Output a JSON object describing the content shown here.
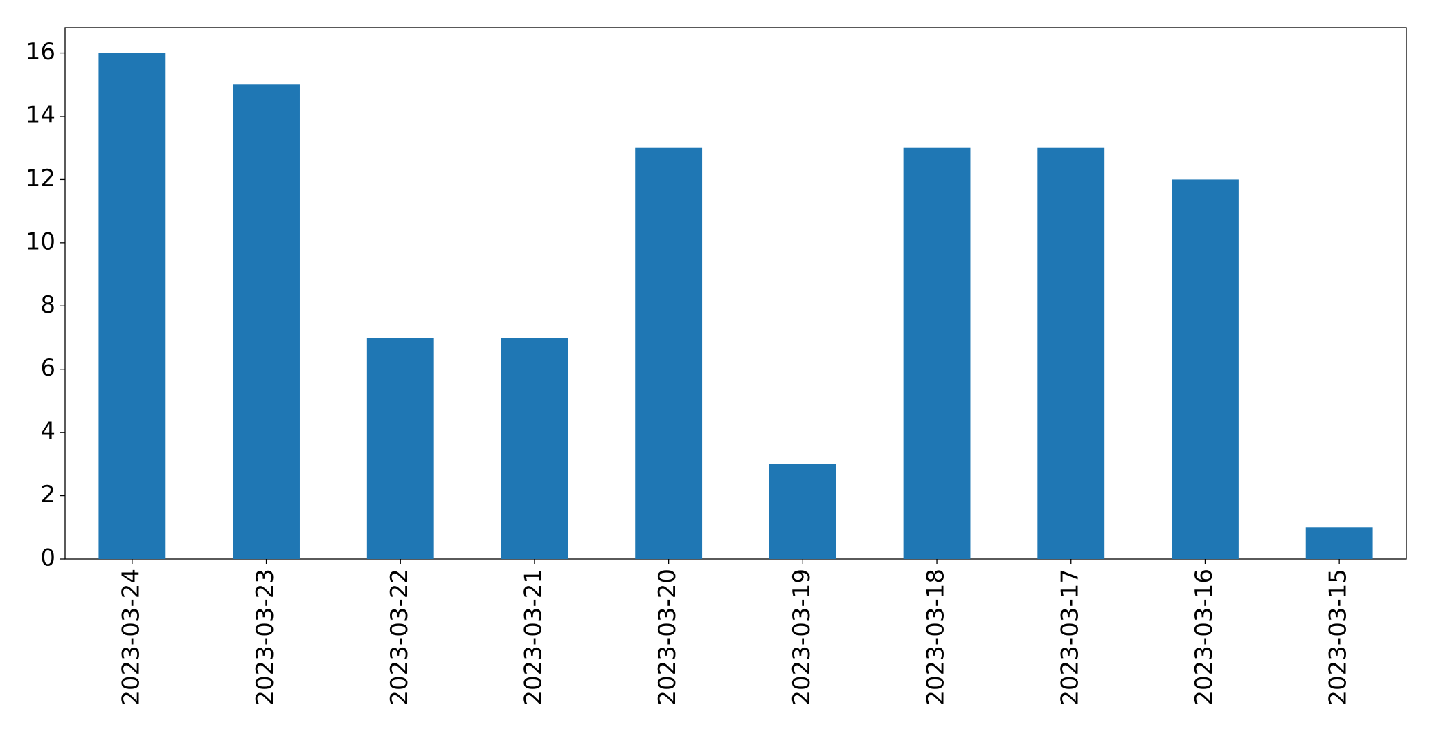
{
  "chart_data": {
    "type": "bar",
    "categories": [
      "2023-03-24",
      "2023-03-23",
      "2023-03-22",
      "2023-03-21",
      "2023-03-20",
      "2023-03-19",
      "2023-03-18",
      "2023-03-17",
      "2023-03-16",
      "2023-03-15"
    ],
    "values": [
      16,
      15,
      7,
      7,
      13,
      3,
      13,
      13,
      12,
      1
    ],
    "color": "#1f77b4",
    "ylim": [
      0,
      16.8
    ],
    "yticks": [
      0,
      2,
      4,
      6,
      8,
      10,
      12,
      14,
      16
    ],
    "grid": false
  }
}
